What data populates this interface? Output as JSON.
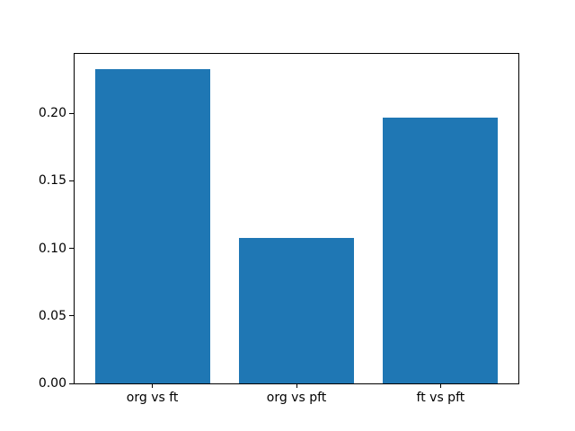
{
  "figure": {
    "background": "#ffffff",
    "spine_color": "#000000",
    "tick_color": "#000000",
    "text_color": "#000000"
  },
  "chart_data": {
    "type": "bar",
    "categories": [
      "org vs ft",
      "org vs pft",
      "ft vs pft"
    ],
    "values": [
      0.233,
      0.108,
      0.197
    ],
    "title": "",
    "xlabel": "",
    "ylabel": "",
    "ylim": [
      0,
      0.244
    ],
    "yticks": [
      0,
      0.05,
      0.1,
      0.15,
      0.2
    ],
    "ytick_labels": [
      "0.00",
      "0.05",
      "0.10",
      "0.15",
      "0.20"
    ],
    "bar_color": "#1f77b4",
    "bar_width_fraction": 0.8,
    "grid": false,
    "legend": null
  }
}
